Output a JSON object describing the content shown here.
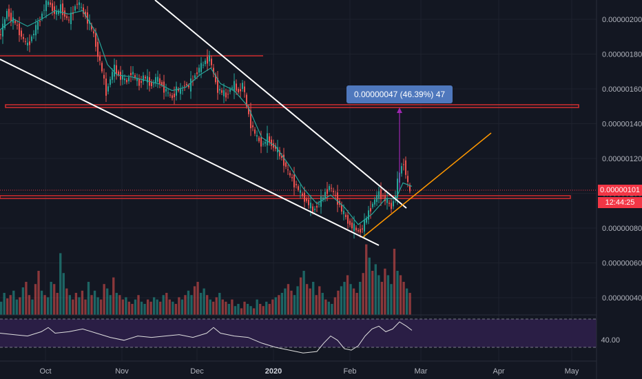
{
  "chart_data": {
    "type": "candlestick",
    "symbol_price_axis": {
      "ticks": [
        "0.00000200",
        "0.00000180",
        "0.00000160",
        "0.00000140",
        "0.00000120",
        "0.00000100",
        "0.00000080",
        "0.00000060",
        "0.00000040"
      ],
      "tick_values": [
        200,
        180,
        160,
        140,
        120,
        100,
        80,
        60,
        40
      ]
    },
    "time_axis": {
      "labels": [
        "Oct",
        "Nov",
        "Dec",
        "2020",
        "Feb",
        "Mar",
        "Apr",
        "May"
      ],
      "bold": [
        "2020"
      ]
    },
    "current_price": "0.00000101",
    "countdown": "12:44:25",
    "measure_label": "0.00000047 (46.39%) 47",
    "rsi_level_label": "40.00",
    "price_series": [
      [
        0,
        190
      ],
      [
        6,
        195
      ],
      [
        12,
        205
      ],
      [
        18,
        200
      ],
      [
        24,
        198
      ],
      [
        30,
        193
      ],
      [
        36,
        188
      ],
      [
        42,
        185
      ],
      [
        48,
        190
      ],
      [
        54,
        195
      ],
      [
        60,
        200
      ],
      [
        66,
        207
      ],
      [
        72,
        210
      ],
      [
        78,
        206
      ],
      [
        84,
        203
      ],
      [
        90,
        207
      ],
      [
        96,
        202
      ],
      [
        102,
        199
      ],
      [
        108,
        205
      ],
      [
        114,
        210
      ],
      [
        120,
        206
      ],
      [
        126,
        202
      ],
      [
        132,
        197
      ],
      [
        138,
        191
      ],
      [
        144,
        180
      ],
      [
        150,
        170
      ],
      [
        156,
        158
      ],
      [
        162,
        166
      ],
      [
        168,
        172
      ],
      [
        174,
        168
      ],
      [
        180,
        166
      ],
      [
        186,
        164
      ],
      [
        192,
        170
      ],
      [
        198,
        166
      ],
      [
        204,
        163
      ],
      [
        210,
        167
      ],
      [
        216,
        165
      ],
      [
        222,
        162
      ],
      [
        228,
        166
      ],
      [
        234,
        164
      ],
      [
        240,
        160
      ],
      [
        246,
        157
      ],
      [
        252,
        155
      ],
      [
        258,
        160
      ],
      [
        264,
        158
      ],
      [
        270,
        163
      ],
      [
        276,
        161
      ],
      [
        282,
        166
      ],
      [
        288,
        170
      ],
      [
        294,
        173
      ],
      [
        300,
        176
      ],
      [
        306,
        178
      ],
      [
        312,
        168
      ],
      [
        318,
        160
      ],
      [
        324,
        158
      ],
      [
        330,
        156
      ],
      [
        336,
        160
      ],
      [
        342,
        162
      ],
      [
        348,
        158
      ],
      [
        354,
        163
      ],
      [
        360,
        150
      ],
      [
        366,
        140
      ],
      [
        372,
        134
      ],
      [
        378,
        130
      ],
      [
        384,
        128
      ],
      [
        390,
        132
      ],
      [
        396,
        128
      ],
      [
        402,
        126
      ],
      [
        408,
        122
      ],
      [
        414,
        118
      ],
      [
        420,
        112
      ],
      [
        426,
        108
      ],
      [
        432,
        104
      ],
      [
        438,
        100
      ],
      [
        444,
        97
      ],
      [
        450,
        94
      ],
      [
        456,
        90
      ],
      [
        462,
        93
      ],
      [
        468,
        96
      ],
      [
        474,
        100
      ],
      [
        480,
        104
      ],
      [
        486,
        100
      ],
      [
        492,
        96
      ],
      [
        498,
        90
      ],
      [
        504,
        86
      ],
      [
        510,
        82
      ],
      [
        516,
        80
      ],
      [
        522,
        78
      ],
      [
        528,
        80
      ],
      [
        534,
        86
      ],
      [
        540,
        92
      ],
      [
        546,
        96
      ],
      [
        552,
        100
      ],
      [
        558,
        98
      ],
      [
        564,
        95
      ],
      [
        570,
        92
      ],
      [
        576,
        100
      ],
      [
        582,
        112
      ],
      [
        588,
        118
      ],
      [
        594,
        105
      ],
      [
        598,
        101
      ]
    ],
    "ma_series": [
      [
        0,
        194
      ],
      [
        20,
        200
      ],
      [
        40,
        196
      ],
      [
        60,
        200
      ],
      [
        80,
        205
      ],
      [
        100,
        203
      ],
      [
        120,
        205
      ],
      [
        140,
        192
      ],
      [
        156,
        174
      ],
      [
        170,
        168
      ],
      [
        190,
        167
      ],
      [
        210,
        165
      ],
      [
        230,
        163
      ],
      [
        250,
        159
      ],
      [
        270,
        161
      ],
      [
        290,
        168
      ],
      [
        306,
        172
      ],
      [
        320,
        163
      ],
      [
        340,
        159
      ],
      [
        360,
        150
      ],
      [
        380,
        132
      ],
      [
        400,
        127
      ],
      [
        420,
        116
      ],
      [
        440,
        103
      ],
      [
        460,
        94
      ],
      [
        480,
        99
      ],
      [
        500,
        92
      ],
      [
        520,
        82
      ],
      [
        540,
        88
      ],
      [
        560,
        97
      ],
      [
        575,
        97
      ],
      [
        585,
        106
      ],
      [
        598,
        104
      ]
    ],
    "volume_bars_percent": [
      12,
      20,
      15,
      18,
      22,
      14,
      16,
      25,
      30,
      18,
      14,
      28,
      40,
      22,
      18,
      16,
      30,
      28,
      20,
      56,
      38,
      24,
      18,
      14,
      20,
      16,
      22,
      14,
      30,
      18,
      22,
      16,
      14,
      28,
      24,
      18,
      34,
      20,
      18,
      14,
      16,
      12,
      10,
      14,
      18,
      12,
      10,
      14,
      12,
      16,
      14,
      12,
      18,
      20,
      14,
      12,
      10,
      16,
      14,
      18,
      22,
      18,
      26,
      30,
      20,
      24,
      18,
      14,
      12,
      16,
      20,
      14,
      12,
      10,
      14,
      8,
      10,
      6,
      12,
      10,
      8,
      6,
      14,
      10,
      8,
      12,
      10,
      14,
      16,
      18,
      20,
      24,
      28,
      22,
      18,
      26,
      34,
      40,
      28,
      24,
      30,
      18,
      26,
      20,
      14,
      12,
      10,
      16,
      22,
      26,
      30,
      36,
      28,
      24,
      20,
      30,
      38,
      64,
      52,
      40,
      46,
      36,
      30,
      42,
      36,
      28,
      60,
      40,
      36,
      30,
      24,
      20
    ],
    "rsi_series": [
      [
        0,
        50
      ],
      [
        20,
        48
      ],
      [
        40,
        46
      ],
      [
        60,
        52
      ],
      [
        70,
        58
      ],
      [
        80,
        50
      ],
      [
        100,
        52
      ],
      [
        120,
        56
      ],
      [
        140,
        50
      ],
      [
        160,
        44
      ],
      [
        180,
        40
      ],
      [
        200,
        46
      ],
      [
        220,
        44
      ],
      [
        240,
        46
      ],
      [
        260,
        48
      ],
      [
        280,
        44
      ],
      [
        300,
        50
      ],
      [
        310,
        58
      ],
      [
        320,
        50
      ],
      [
        340,
        46
      ],
      [
        360,
        44
      ],
      [
        380,
        36
      ],
      [
        400,
        30
      ],
      [
        420,
        26
      ],
      [
        440,
        22
      ],
      [
        460,
        24
      ],
      [
        470,
        36
      ],
      [
        480,
        46
      ],
      [
        490,
        40
      ],
      [
        500,
        28
      ],
      [
        510,
        26
      ],
      [
        520,
        32
      ],
      [
        530,
        46
      ],
      [
        540,
        56
      ],
      [
        550,
        60
      ],
      [
        560,
        52
      ],
      [
        570,
        56
      ],
      [
        580,
        66
      ],
      [
        590,
        60
      ],
      [
        598,
        54
      ]
    ]
  }
}
